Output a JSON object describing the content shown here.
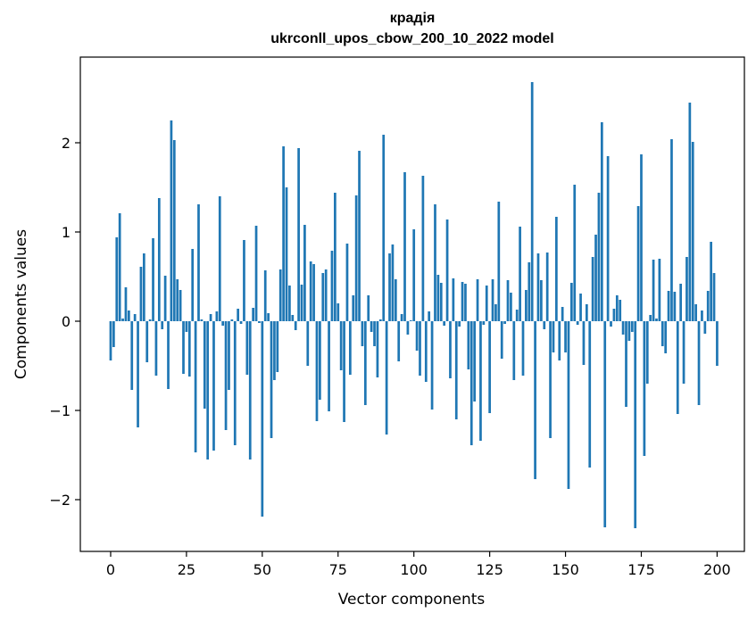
{
  "chart_data": {
    "type": "bar",
    "title_line1": "крадія",
    "title_line2": "ukrconll_upos_cbow_200_10_2022 model",
    "xlabel": "Vector components",
    "ylabel": "Components values",
    "xlim": [
      -10,
      209
    ],
    "ylim": [
      -2.58,
      2.96
    ],
    "xticks": [
      0,
      25,
      50,
      75,
      100,
      125,
      150,
      175,
      200
    ],
    "yticks": [
      -2,
      -1,
      0,
      1,
      2
    ],
    "ytick_labels": [
      "−2",
      "−1",
      "0",
      "1",
      "2"
    ],
    "bar_color": "#1f77b4",
    "grid": false,
    "values": [
      -0.44,
      -0.29,
      0.94,
      1.21,
      0.03,
      0.38,
      0.12,
      -0.77,
      0.08,
      -1.19,
      0.61,
      0.76,
      -0.46,
      0.02,
      0.93,
      -0.61,
      1.38,
      -0.09,
      0.51,
      -0.76,
      2.25,
      2.03,
      0.47,
      0.35,
      -0.59,
      -0.12,
      -0.62,
      0.81,
      -1.47,
      1.31,
      0.02,
      -0.98,
      -1.55,
      0.08,
      -1.45,
      0.11,
      1.4,
      -0.05,
      -1.22,
      -0.77,
      0.02,
      -1.39,
      0.14,
      -0.03,
      0.91,
      -0.6,
      -1.55,
      0.15,
      1.07,
      -0.02,
      -2.19,
      0.57,
      0.09,
      -1.31,
      -0.66,
      -0.57,
      0.58,
      1.96,
      1.5,
      0.4,
      0.07,
      -0.1,
      1.94,
      0.41,
      1.08,
      -0.5,
      0.67,
      0.64,
      -1.12,
      -0.88,
      0.54,
      0.58,
      -1.01,
      0.79,
      1.44,
      0.2,
      -0.55,
      -1.13,
      0.87,
      -0.6,
      0.29,
      1.41,
      1.91,
      -0.28,
      -0.94,
      0.29,
      -0.12,
      -0.28,
      -0.63,
      0.02,
      2.09,
      -1.27,
      0.76,
      0.86,
      0.47,
      -0.45,
      0.08,
      1.67,
      -0.15,
      0.01,
      1.03,
      -0.33,
      -0.61,
      1.63,
      -0.68,
      0.11,
      -0.99,
      1.31,
      0.52,
      0.43,
      -0.05,
      1.14,
      -0.64,
      0.48,
      -1.1,
      -0.06,
      0.44,
      0.42,
      -0.54,
      -1.39,
      -0.9,
      0.47,
      -1.34,
      -0.04,
      0.4,
      -1.03,
      0.47,
      0.19,
      1.34,
      -0.42,
      -0.03,
      0.46,
      0.32,
      -0.66,
      0.13,
      1.06,
      -0.61,
      0.35,
      0.66,
      2.68,
      -1.77,
      0.76,
      0.46,
      -0.09,
      0.77,
      -1.31,
      -0.35,
      1.17,
      -0.44,
      0.16,
      -0.35,
      -1.88,
      0.43,
      1.53,
      -0.04,
      0.31,
      -0.49,
      0.19,
      -1.64,
      0.72,
      0.97,
      1.44,
      2.23,
      -2.31,
      1.85,
      -0.06,
      0.14,
      0.29,
      0.24,
      -0.15,
      -0.96,
      -0.22,
      -0.12,
      -2.32,
      1.29,
      1.87,
      -1.51,
      -0.7,
      0.07,
      0.69,
      0.03,
      0.7,
      -0.28,
      -0.36,
      0.34,
      2.04,
      0.33,
      -1.04,
      0.42,
      -0.7,
      0.72,
      2.45,
      2.01,
      0.19,
      -0.94,
      0.12,
      -0.14,
      0.34,
      0.89,
      0.54,
      -0.5
    ]
  }
}
